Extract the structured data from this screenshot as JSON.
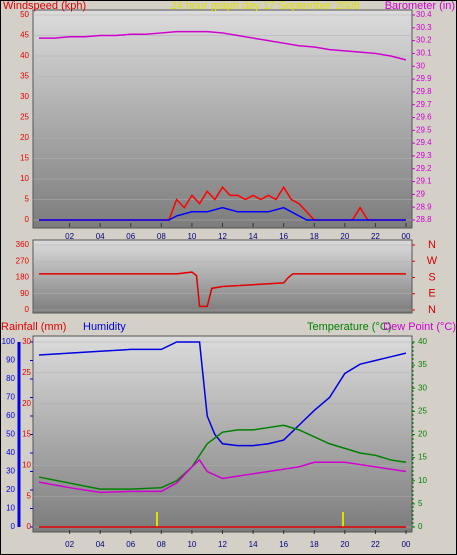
{
  "chart_data": [
    {
      "type": "line",
      "title": "24 hour graph day   17 September 2008",
      "ylabel": "Windspeed (kph)",
      "y2label": "Barometer (in)",
      "ycolor": "#e00000",
      "y2color": "#d000d0",
      "xlim": [
        0,
        24
      ],
      "xticks": [
        {
          "value": 2,
          "label": "02"
        },
        {
          "value": 4,
          "label": "04"
        },
        {
          "value": 6,
          "label": "06"
        },
        {
          "value": 8,
          "label": "08"
        },
        10,
        12,
        14,
        16,
        18,
        20,
        22,
        {
          "value": 24,
          "label": "00"
        }
      ],
      "ylim": [
        0,
        50
      ],
      "yticks": [
        0,
        5,
        10,
        15,
        20,
        25,
        30,
        35,
        40,
        45,
        50
      ],
      "y2lim": [
        28.8,
        30.4
      ],
      "y2ticks": [
        28.8,
        28.9,
        29,
        29.1,
        29.2,
        29.3,
        29.4,
        29.5,
        29.6,
        29.7,
        29.8,
        29.9,
        30,
        30.1,
        30.2,
        30.3,
        30.4
      ],
      "grid": true,
      "series": [
        {
          "color": "#ff0000",
          "axis": "y",
          "x": [
            0,
            8,
            8.5,
            9,
            9.5,
            10,
            10.5,
            11,
            11.5,
            12,
            12.5,
            13,
            13.5,
            14,
            14.5,
            15,
            15.5,
            16,
            16.5,
            17,
            17.5,
            18,
            20.5,
            21,
            21.5,
            24
          ],
          "values": [
            0,
            0,
            0,
            5,
            3,
            6,
            4,
            7,
            5,
            8,
            6,
            6,
            5,
            6,
            5,
            6,
            5,
            8,
            5,
            4,
            2,
            0,
            0,
            3,
            0,
            0
          ]
        },
        {
          "color": "#0000ff",
          "axis": "y",
          "x": [
            0,
            8.5,
            9,
            10,
            11,
            12,
            13,
            14,
            15,
            16,
            17,
            17.5,
            24
          ],
          "values": [
            0,
            0,
            1,
            2,
            2,
            3,
            2,
            2,
            2,
            3,
            1,
            0,
            0
          ]
        },
        {
          "color": "#d000d0",
          "axis": "y2",
          "x": [
            0,
            1,
            2,
            3,
            4,
            5,
            6,
            7,
            8,
            9,
            10,
            11,
            12,
            13,
            14,
            15,
            16,
            17,
            18,
            19,
            20,
            21,
            22,
            23,
            24
          ],
          "values": [
            30.22,
            30.22,
            30.23,
            30.23,
            30.24,
            30.24,
            30.25,
            30.25,
            30.26,
            30.27,
            30.27,
            30.27,
            30.26,
            30.24,
            30.22,
            30.2,
            30.18,
            30.16,
            30.15,
            30.13,
            30.12,
            30.11,
            30.1,
            30.08,
            30.05
          ]
        }
      ]
    },
    {
      "type": "line",
      "ycolor": "#e00000",
      "y2color": "#d00000",
      "xlim": [
        0,
        24
      ],
      "ylim": [
        0,
        360
      ],
      "yticks": [
        0,
        90,
        180,
        270,
        360
      ],
      "y2lim": [
        0,
        360
      ],
      "y2ticks": [
        {
          "value": 360,
          "label": "N"
        },
        {
          "value": 270,
          "label": "W"
        },
        {
          "value": 180,
          "label": "S"
        },
        {
          "value": 90,
          "label": "E"
        },
        {
          "value": 0,
          "label": "N"
        }
      ],
      "grid": true,
      "series": [
        {
          "color": "#e00000",
          "axis": "y",
          "x": [
            0,
            9,
            10,
            10.3,
            10.5,
            11,
            11.3,
            12,
            14,
            16,
            16.3,
            16.6,
            17,
            24
          ],
          "values": [
            200,
            200,
            210,
            190,
            20,
            20,
            120,
            130,
            140,
            150,
            180,
            200,
            200,
            200
          ]
        }
      ]
    },
    {
      "type": "line",
      "ycolor": "#e00000",
      "y2color": "#008000",
      "y3color": "#0000e0",
      "xlim": [
        0,
        24
      ],
      "xticks": [
        {
          "value": 2,
          "label": "02"
        },
        {
          "value": 4,
          "label": "04"
        },
        {
          "value": 6,
          "label": "06"
        },
        {
          "value": 8,
          "label": "08"
        },
        10,
        12,
        14,
        16,
        18,
        20,
        22,
        {
          "value": 24,
          "label": "00"
        }
      ],
      "ylim": [
        0,
        30
      ],
      "yticks": [
        0,
        5,
        10,
        15,
        20,
        25,
        30
      ],
      "y2lim": [
        0,
        40
      ],
      "y2ticks": [
        0,
        5,
        10,
        15,
        20,
        25,
        30,
        35,
        40
      ],
      "y3lim": [
        0,
        100
      ],
      "y3ticks": [
        0,
        10,
        20,
        30,
        40,
        50,
        60,
        70,
        80,
        90,
        100
      ],
      "grid": true,
      "series": [
        {
          "name": "Rainfall (mm)",
          "color": "#e00000",
          "axis": "y",
          "x": [
            0,
            24
          ],
          "values": [
            0,
            0
          ]
        },
        {
          "name": "Humidity",
          "color": "#0000e0",
          "axis": "y3",
          "x": [
            0,
            2,
            4,
            6,
            8,
            9,
            10,
            10.5,
            11,
            11.5,
            12,
            13,
            14,
            15,
            16,
            17,
            18,
            19,
            20,
            21,
            22,
            23,
            24
          ],
          "values": [
            93,
            94,
            95,
            96,
            96,
            100,
            100,
            100,
            60,
            50,
            45,
            44,
            44,
            45,
            47,
            55,
            63,
            70,
            83,
            88,
            90,
            92,
            94
          ]
        },
        {
          "name": "Temperature (°C)",
          "color": "#008000",
          "axis": "y2",
          "x": [
            0,
            2,
            4,
            6,
            8,
            9,
            10,
            11,
            12,
            13,
            14,
            15,
            16,
            17,
            18,
            19,
            20,
            21,
            22,
            23,
            24
          ],
          "values": [
            10.8,
            9.5,
            8.2,
            8.2,
            8.5,
            10,
            13,
            18,
            20.5,
            21,
            21,
            21.5,
            22,
            21,
            19.5,
            18,
            17,
            16,
            15.5,
            14.5,
            14
          ]
        },
        {
          "name": "Dew Point (°C)",
          "color": "#d000d0",
          "axis": "y2",
          "x": [
            0,
            2,
            4,
            6,
            8,
            9,
            10,
            10.5,
            11,
            12,
            13,
            14,
            15,
            16,
            17,
            18,
            19,
            20,
            21,
            22,
            23,
            24
          ],
          "values": [
            9.7,
            8.5,
            7.5,
            7.7,
            7.7,
            9.5,
            13,
            14.5,
            12,
            10.5,
            11,
            11.5,
            12,
            12.5,
            13,
            14,
            14,
            14,
            13.5,
            13,
            12.5,
            12
          ]
        }
      ]
    }
  ]
}
